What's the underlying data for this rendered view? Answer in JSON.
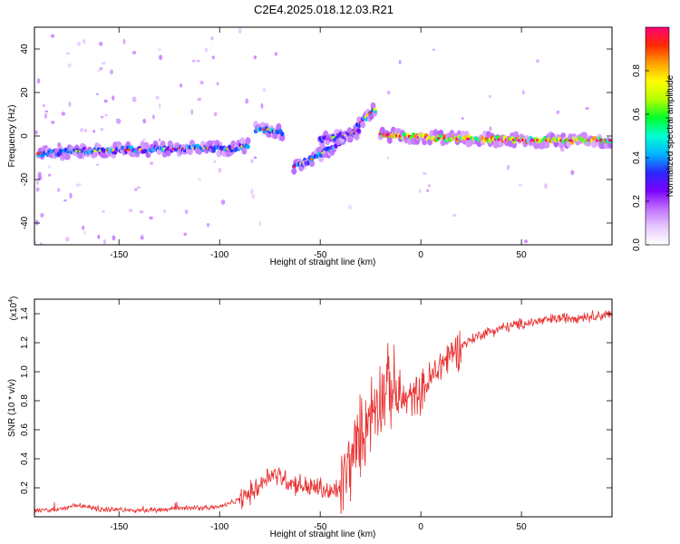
{
  "title": "C2E4.2025.018.12.03.R21",
  "chart_data": [
    {
      "type": "heatmap",
      "xlabel": "Height of straight line (km)",
      "ylabel": "Frequency (Hz)",
      "xlim": [
        -192,
        95
      ],
      "ylim": [
        -50,
        50
      ],
      "xticks": [
        -150,
        -100,
        -50,
        0,
        50
      ],
      "yticks": [
        -40,
        -20,
        0,
        20,
        40
      ],
      "colorbar": {
        "label": "Normalized spectral amplitude",
        "range": [
          0.0,
          1.0
        ],
        "ticks": [
          "0.0",
          "0.2",
          "0.4",
          "0.6",
          "0.8"
        ],
        "tick_values": [
          0.0,
          0.2,
          0.4,
          0.6,
          0.8
        ],
        "colors": [
          "#ffffff",
          "#e8c8ff",
          "#c070ff",
          "#7a00ff",
          "#2a2aff",
          "#00b4ff",
          "#00ffd2",
          "#00ff2a",
          "#b4ff00",
          "#ffff00",
          "#ffa000",
          "#ff2a00",
          "#ff0078"
        ]
      },
      "ridges": [
        {
          "x": [
            -190,
            -170,
            -150,
            -130,
            -110,
            -95,
            -85
          ],
          "y": [
            -8,
            -7,
            -6.5,
            -6,
            -5.5,
            -6,
            -4
          ],
          "amplitude": 0.45
        },
        {
          "x": [
            -82,
            -75,
            -68
          ],
          "y": [
            3,
            3,
            1
          ],
          "amplitude": 0.5
        },
        {
          "x": [
            -63,
            -55,
            -45,
            -35,
            -28,
            -22
          ],
          "y": [
            -14,
            -11,
            -6,
            1,
            8,
            13
          ],
          "amplitude": 0.45
        },
        {
          "x": [
            -50,
            -40,
            -30
          ],
          "y": [
            -2,
            0,
            2
          ],
          "amplitude": 0.35
        },
        {
          "x": [
            -20,
            -10,
            0,
            10,
            30,
            60,
            95
          ],
          "y": [
            1,
            0,
            -0.5,
            -1,
            -1.5,
            -2,
            -2
          ],
          "amplitude": 0.9
        }
      ]
    },
    {
      "type": "line",
      "xlabel": "Height of straight line (km)",
      "ylabel": "SNR (10 * v/v)",
      "y_multiplier": "(x10",
      "y_multiplier_exp": "4",
      "y_multiplier_close": ")",
      "xlim": [
        -192,
        95
      ],
      "ylim": [
        0,
        1.5
      ],
      "xticks": [
        -150,
        -100,
        -50,
        0,
        50
      ],
      "yticks": [
        0.2,
        0.4,
        0.6,
        0.8,
        1.0,
        1.2,
        1.4
      ],
      "series": [
        {
          "color": "#e83030",
          "x": [
            -192,
            -180,
            -170,
            -160,
            -150,
            -140,
            -130,
            -120,
            -110,
            -100,
            -95,
            -90,
            -85,
            -80,
            -75,
            -70,
            -65,
            -60,
            -55,
            -50,
            -45,
            -40,
            -35,
            -30,
            -25,
            -20,
            -15,
            -10,
            -5,
            0,
            5,
            10,
            15,
            20,
            25,
            30,
            40,
            50,
            60,
            70,
            80,
            90,
            95
          ],
          "values": [
            0.04,
            0.05,
            0.08,
            0.05,
            0.05,
            0.04,
            0.05,
            0.06,
            0.06,
            0.07,
            0.09,
            0.12,
            0.16,
            0.22,
            0.3,
            0.28,
            0.24,
            0.22,
            0.2,
            0.2,
            0.16,
            0.2,
            0.38,
            0.55,
            0.72,
            0.85,
            0.9,
            0.8,
            0.82,
            0.86,
            0.95,
            1.05,
            1.12,
            1.18,
            1.22,
            1.26,
            1.3,
            1.33,
            1.35,
            1.37,
            1.38,
            1.39,
            1.39
          ]
        }
      ]
    }
  ]
}
